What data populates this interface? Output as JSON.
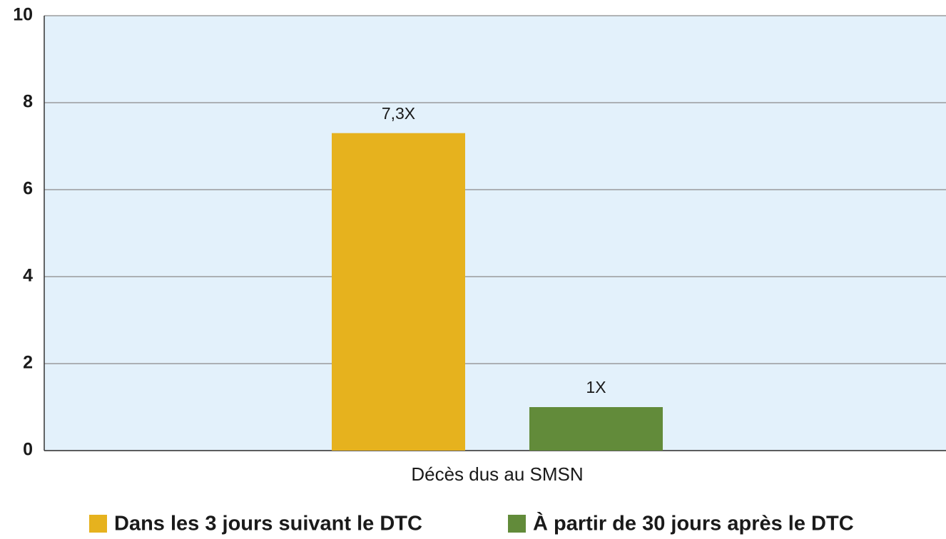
{
  "chart_data": {
    "type": "bar",
    "categories": [
      "Décès dus au SMSN"
    ],
    "series": [
      {
        "name": "Dans les 3 jours suivant le DTC",
        "color": "#e6b21e",
        "values": [
          7.3
        ],
        "value_labels": [
          "7,3X"
        ]
      },
      {
        "name": "À partir de 30 jours après le DTC",
        "color": "#628b3a",
        "values": [
          1
        ],
        "value_labels": [
          "1X"
        ]
      }
    ],
    "ylim": [
      0,
      10
    ],
    "yticks": [
      0,
      2,
      4,
      6,
      8,
      10
    ],
    "grid": true,
    "legend": "bottom"
  }
}
